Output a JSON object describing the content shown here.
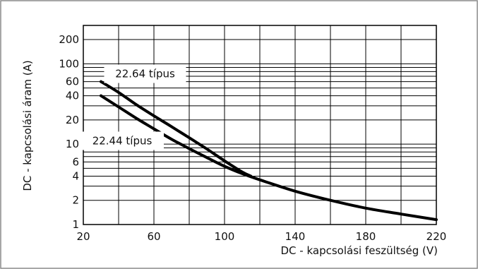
{
  "chart_data": {
    "type": "line",
    "title": "",
    "xlabel": "DC -  kapcsolási feszültség (V)",
    "ylabel": "DC -  kapcsolási áram (A)",
    "x_scale": "linear",
    "y_scale": "log",
    "xlim": [
      20,
      220
    ],
    "ylim": [
      1,
      300
    ],
    "x_ticks": [
      20,
      60,
      100,
      140,
      180,
      220
    ],
    "x_tick_labels": [
      "20",
      "60",
      "100",
      "140",
      "180",
      "220"
    ],
    "x_grid": [
      20,
      40,
      60,
      80,
      100,
      120,
      140,
      160,
      180,
      200,
      220
    ],
    "y_ticks": [
      1,
      2,
      4,
      6,
      10,
      20,
      40,
      60,
      100,
      200
    ],
    "y_tick_labels": [
      "1",
      "2",
      "4",
      "6",
      "10",
      "20",
      "40",
      "60",
      "100",
      "200"
    ],
    "y_grid": [
      1,
      2,
      3,
      4,
      5,
      6,
      7,
      8,
      9,
      10,
      20,
      30,
      40,
      50,
      60,
      70,
      80,
      90,
      100,
      200,
      300
    ],
    "grid": true,
    "series": [
      {
        "name": "22.64 típus",
        "x": [
          30,
          40,
          50,
          60,
          70,
          80,
          90,
          100,
          110,
          115
        ],
        "y": [
          60,
          44,
          31,
          22.5,
          16.5,
          12,
          8.7,
          6.2,
          4.5,
          4.0
        ]
      },
      {
        "name": "22.44 típus",
        "x": [
          30,
          40,
          50,
          60,
          70,
          80,
          90,
          100,
          110,
          120,
          140,
          160,
          180,
          200,
          220
        ],
        "y": [
          40,
          29,
          21,
          15.5,
          11.5,
          8.8,
          6.8,
          5.3,
          4.3,
          3.6,
          2.6,
          2.0,
          1.6,
          1.35,
          1.15
        ]
      }
    ]
  }
}
